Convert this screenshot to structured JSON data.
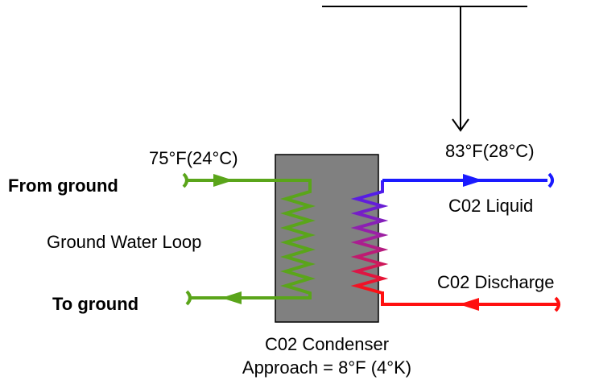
{
  "labels": {
    "inlet_temp": "75°F(24°C)",
    "from_ground": "From ground",
    "loop_name": "Ground Water Loop",
    "to_ground": "To ground",
    "outlet_temp": "83°F(28°C)",
    "liquid": "C02 Liquid",
    "discharge": "C02 Discharge",
    "condenser": "C02 Condenser",
    "approach": "Approach = 8°F (4°K)"
  }
}
